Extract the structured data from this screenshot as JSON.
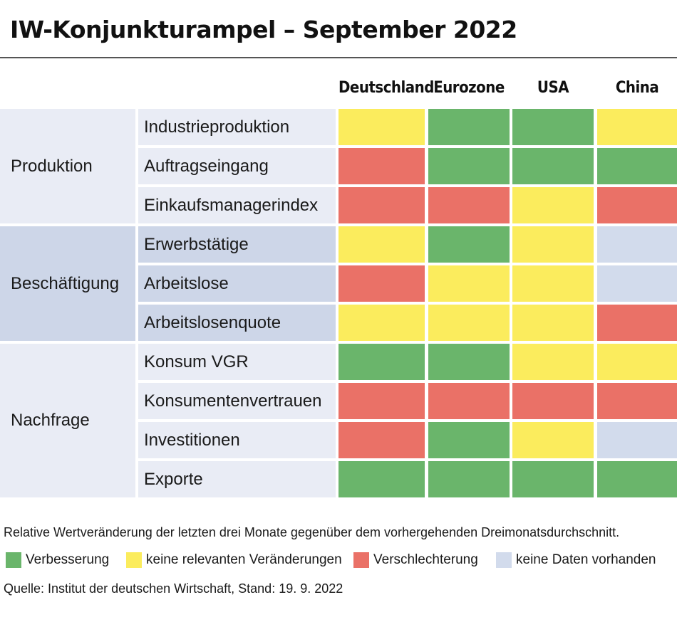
{
  "title": "IW-Konjunkturampel – September 2022",
  "colors": {
    "green": "#6ab56b",
    "yellow": "#fbec5d",
    "red": "#ea7167",
    "none": "#d2dbec",
    "band_light": "#e9ecf5",
    "band_dark": "#cdd6e8"
  },
  "chart_data": {
    "type": "table",
    "title": "IW-Konjunkturampel – September 2022",
    "columns": [
      "Deutschland",
      "Eurozone",
      "USA",
      "China"
    ],
    "groups": [
      {
        "name": "Produktion",
        "rows": [
          {
            "label": "Industrieproduktion",
            "values": [
              "yellow",
              "green",
              "green",
              "yellow"
            ]
          },
          {
            "label": "Auftragseingang",
            "values": [
              "red",
              "green",
              "green",
              "green"
            ]
          },
          {
            "label": "Einkaufsmanagerindex",
            "values": [
              "red",
              "red",
              "yellow",
              "red"
            ]
          }
        ]
      },
      {
        "name": "Beschäftigung",
        "rows": [
          {
            "label": "Erwerbstätige",
            "values": [
              "yellow",
              "green",
              "yellow",
              "none"
            ]
          },
          {
            "label": "Arbeitslose",
            "values": [
              "red",
              "yellow",
              "yellow",
              "none"
            ]
          },
          {
            "label": "Arbeitslosenquote",
            "values": [
              "yellow",
              "yellow",
              "yellow",
              "red"
            ]
          }
        ]
      },
      {
        "name": "Nachfrage",
        "rows": [
          {
            "label": "Konsum VGR",
            "values": [
              "green",
              "green",
              "yellow",
              "yellow"
            ]
          },
          {
            "label": "Konsumentenvertrauen",
            "values": [
              "red",
              "red",
              "red",
              "red"
            ]
          },
          {
            "label": "Investitionen",
            "values": [
              "red",
              "green",
              "yellow",
              "none"
            ]
          },
          {
            "label": "Exporte",
            "values": [
              "green",
              "green",
              "green",
              "green"
            ]
          }
        ]
      }
    ],
    "legend": [
      {
        "key": "green",
        "label": "Verbesserung"
      },
      {
        "key": "yellow",
        "label": "keine relevanten Veränderungen"
      },
      {
        "key": "red",
        "label": "Verschlechterung"
      },
      {
        "key": "none",
        "label": "keine Daten vorhanden"
      }
    ]
  },
  "note": "Relative Wertveränderung der letzten drei Monate gegenüber dem vorhergehenden Dreimonatsdurchschnitt.",
  "source": "Quelle: Institut der deutschen Wirtschaft, Stand: 19. 9. 2022"
}
